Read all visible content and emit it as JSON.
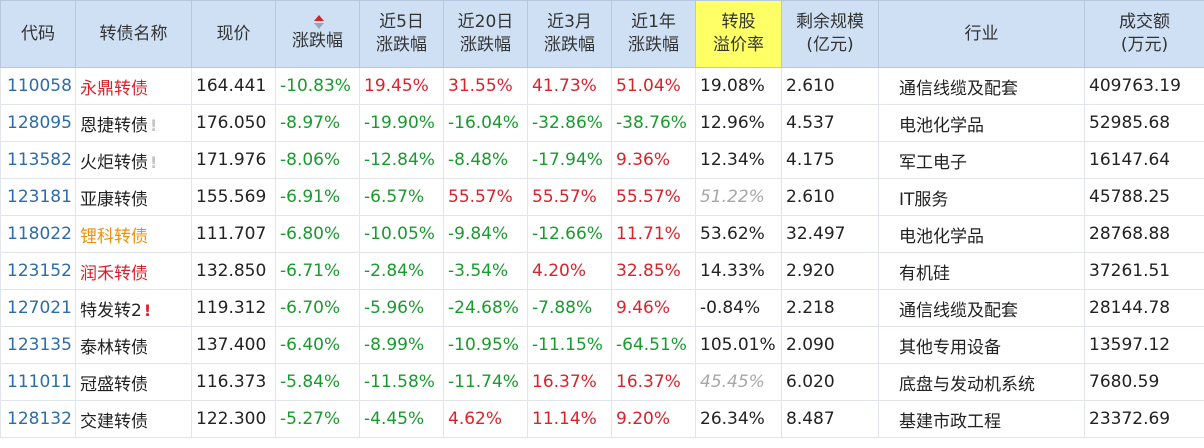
{
  "headers": [
    {
      "lines": [
        "代码"
      ]
    },
    {
      "lines": [
        "转债名称"
      ]
    },
    {
      "lines": [
        "现价"
      ]
    },
    {
      "lines": [
        "涨跌幅"
      ],
      "sorted": true
    },
    {
      "lines": [
        "近5日",
        "涨跌幅"
      ]
    },
    {
      "lines": [
        "近20日",
        "涨跌幅"
      ]
    },
    {
      "lines": [
        "近3月",
        "涨跌幅"
      ]
    },
    {
      "lines": [
        "近1年",
        "涨跌幅"
      ]
    },
    {
      "lines": [
        "转股",
        "溢价率"
      ],
      "highlight": true
    },
    {
      "lines": [
        "剩余规模",
        "(亿元)"
      ]
    },
    {
      "lines": [
        "行业"
      ]
    },
    {
      "lines": [
        "成交额",
        "(万元)"
      ]
    }
  ],
  "colors": {
    "up": "#d8232a",
    "down": "#199a2e",
    "code": "#2e6ca8",
    "header_bg": "#cfe0f5",
    "highlight_bg": "#ffff66"
  },
  "rows": [
    {
      "code": "110058",
      "name": "永鼎转债",
      "name_color": "red",
      "mark": "",
      "price": "164.441",
      "chg": "-10.83%",
      "d5": "19.45%",
      "d20": "31.55%",
      "m3": "41.73%",
      "y1": "51.04%",
      "premium": "19.08%",
      "premium_gray": false,
      "scale": "2.610",
      "industry": "通信线缆及配套",
      "turnover": "409763.19"
    },
    {
      "code": "128095",
      "name": "恩捷转债",
      "name_color": "normal",
      "mark": "!",
      "mark_color": "gray",
      "price": "176.050",
      "chg": "-8.97%",
      "d5": "-19.90%",
      "d20": "-16.04%",
      "m3": "-32.86%",
      "y1": "-38.76%",
      "premium": "12.96%",
      "premium_gray": false,
      "scale": "4.537",
      "industry": "电池化学品",
      "turnover": "52985.68"
    },
    {
      "code": "113582",
      "name": "火炬转债",
      "name_color": "normal",
      "mark": "!",
      "mark_color": "gray",
      "price": "171.976",
      "chg": "-8.06%",
      "d5": "-12.84%",
      "d20": "-8.48%",
      "m3": "-17.94%",
      "y1": "9.36%",
      "premium": "12.34%",
      "premium_gray": false,
      "scale": "4.175",
      "industry": "军工电子",
      "turnover": "16147.64"
    },
    {
      "code": "123181",
      "name": "亚康转债",
      "name_color": "normal",
      "mark": "",
      "price": "155.569",
      "chg": "-6.91%",
      "d5": "-6.57%",
      "d20": "55.57%",
      "m3": "55.57%",
      "y1": "55.57%",
      "premium": "51.22%",
      "premium_gray": true,
      "scale": "2.610",
      "industry": "IT服务",
      "turnover": "45788.25"
    },
    {
      "code": "118022",
      "name": "锂科转债",
      "name_color": "orange",
      "mark": "",
      "price": "111.707",
      "chg": "-6.80%",
      "d5": "-10.05%",
      "d20": "-9.84%",
      "m3": "-12.66%",
      "y1": "11.71%",
      "premium": "53.62%",
      "premium_gray": false,
      "scale": "32.497",
      "industry": "电池化学品",
      "turnover": "28768.88"
    },
    {
      "code": "123152",
      "name": "润禾转债",
      "name_color": "red",
      "mark": "",
      "price": "132.850",
      "chg": "-6.71%",
      "d5": "-2.84%",
      "d20": "-3.54%",
      "m3": "4.20%",
      "y1": "32.85%",
      "premium": "14.33%",
      "premium_gray": false,
      "scale": "2.920",
      "industry": "有机硅",
      "turnover": "37261.51"
    },
    {
      "code": "127021",
      "name": "特发转2",
      "name_color": "normal",
      "mark": "!",
      "mark_color": "red",
      "price": "119.312",
      "chg": "-6.70%",
      "d5": "-5.96%",
      "d20": "-24.68%",
      "m3": "-7.88%",
      "y1": "9.46%",
      "premium": "-0.84%",
      "premium_gray": false,
      "scale": "2.218",
      "industry": "通信线缆及配套",
      "turnover": "28144.78"
    },
    {
      "code": "123135",
      "name": "泰林转债",
      "name_color": "normal",
      "mark": "",
      "price": "137.400",
      "chg": "-6.40%",
      "d5": "-8.99%",
      "d20": "-10.95%",
      "m3": "-11.15%",
      "y1": "-64.51%",
      "premium": "105.01%",
      "premium_gray": false,
      "scale": "2.090",
      "industry": "其他专用设备",
      "turnover": "13597.12"
    },
    {
      "code": "111011",
      "name": "冠盛转债",
      "name_color": "normal",
      "mark": "",
      "price": "116.373",
      "chg": "-5.84%",
      "d5": "-11.58%",
      "d20": "-11.74%",
      "m3": "16.37%",
      "y1": "16.37%",
      "premium": "45.45%",
      "premium_gray": true,
      "scale": "6.020",
      "industry": "底盘与发动机系统",
      "turnover": "7680.59"
    },
    {
      "code": "128132",
      "name": "交建转债",
      "name_color": "normal",
      "mark": "",
      "price": "122.300",
      "chg": "-5.27%",
      "d5": "-4.45%",
      "d20": "4.62%",
      "m3": "11.14%",
      "y1": "9.20%",
      "premium": "26.34%",
      "premium_gray": false,
      "scale": "8.487",
      "industry": "基建市政工程",
      "turnover": "23372.69"
    }
  ]
}
